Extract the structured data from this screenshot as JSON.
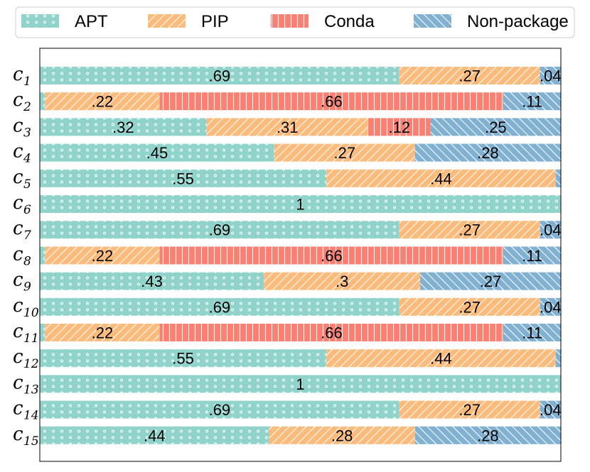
{
  "chart_data": {
    "type": "bar",
    "orientation": "horizontal",
    "stacked": true,
    "normalized": true,
    "title": "",
    "xlabel": "",
    "ylabel": "",
    "xlim": [
      0,
      1
    ],
    "legend_position": "top",
    "row_prefix": "c",
    "categories": [
      "1",
      "2",
      "3",
      "4",
      "5",
      "6",
      "7",
      "8",
      "9",
      "10",
      "11",
      "12",
      "13",
      "14",
      "15"
    ],
    "series": [
      {
        "name": "APT",
        "color": "#8fd3cb",
        "pattern": "dots",
        "values": [
          0.69,
          0.01,
          0.32,
          0.45,
          0.55,
          1,
          0.69,
          0.01,
          0.43,
          0.69,
          0.01,
          0.55,
          1,
          0.69,
          0.44
        ]
      },
      {
        "name": "PIP",
        "color": "#fdbb7b",
        "pattern": "diag",
        "values": [
          0.27,
          0.22,
          0.31,
          0.27,
          0.44,
          0,
          0.27,
          0.22,
          0.3,
          0.27,
          0.22,
          0.44,
          0,
          0.27,
          0.28
        ]
      },
      {
        "name": "Conda",
        "color": "#fb8072",
        "pattern": "vlines",
        "values": [
          0,
          0.66,
          0.12,
          0,
          0,
          0,
          0,
          0.66,
          0,
          0,
          0.66,
          0,
          0,
          0,
          0
        ]
      },
      {
        "name": "Non-package",
        "color": "#80b1d3",
        "pattern": "backdiag",
        "values": [
          0.04,
          0.11,
          0.25,
          0.28,
          0.01,
          0,
          0.04,
          0.11,
          0.27,
          0.04,
          0.11,
          0.01,
          0,
          0.04,
          0.28
        ]
      }
    ],
    "data_labels": [
      [
        ".69",
        "",
        ".27",
        "",
        "",
        "",
        ".04"
      ],
      [
        "",
        "",
        ".22",
        "",
        ".66",
        "",
        ".11"
      ],
      [
        ".32",
        "",
        ".31",
        "",
        ".12",
        "",
        ".25"
      ],
      [
        ".45",
        "",
        ".27",
        "",
        "",
        "",
        ".28"
      ],
      [
        ".55",
        "",
        ".44",
        "",
        "",
        "",
        ""
      ],
      [
        "1",
        "",
        "",
        "",
        "",
        "",
        ""
      ],
      [
        ".69",
        "",
        ".27",
        "",
        "",
        "",
        ".04"
      ],
      [
        "",
        "",
        ".22",
        "",
        ".66",
        "",
        ".11"
      ],
      [
        ".43",
        "",
        ".3",
        "",
        "",
        "",
        ".27"
      ],
      [
        ".69",
        "",
        ".27",
        "",
        "",
        "",
        ".04"
      ],
      [
        "",
        "",
        ".22",
        "",
        ".66",
        "",
        ".11"
      ],
      [
        ".55",
        "",
        ".44",
        "",
        "",
        "",
        ""
      ],
      [
        "1",
        "",
        "",
        "",
        "",
        "",
        ""
      ],
      [
        ".69",
        "",
        ".27",
        "",
        "",
        "",
        ".04"
      ],
      [
        ".44",
        "",
        ".28",
        "",
        "",
        "",
        ".28"
      ]
    ]
  }
}
